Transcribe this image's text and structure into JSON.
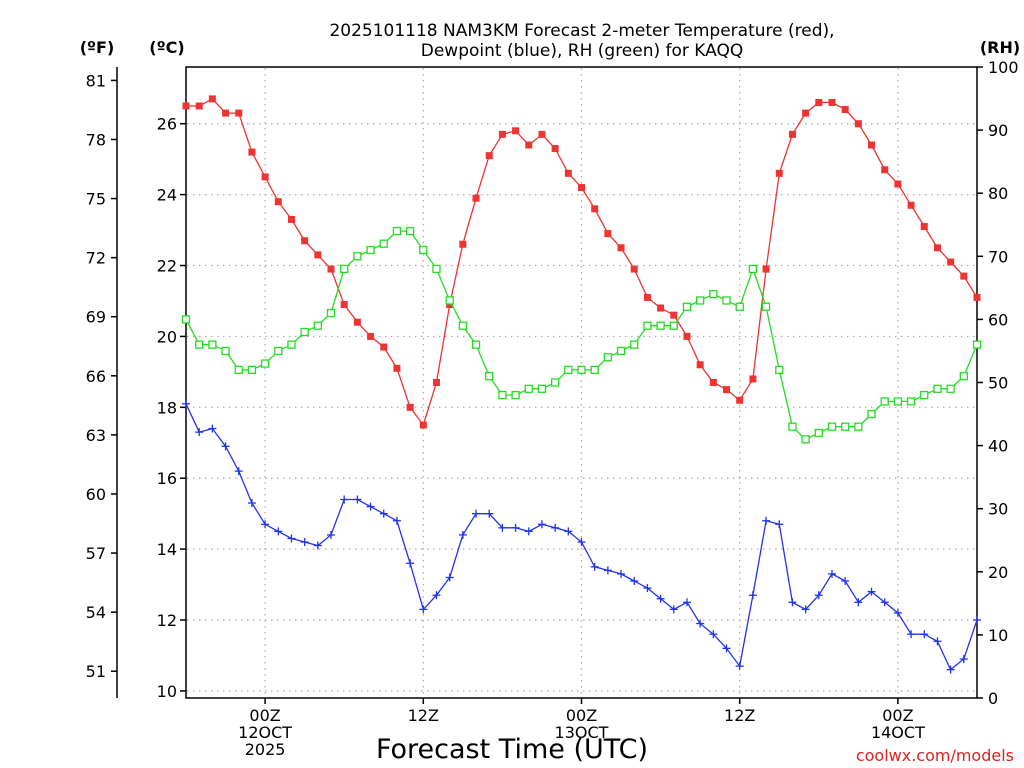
{
  "chart_data": {
    "type": "line",
    "title_line1": "2025101118 NAM3KM Forecast 2-meter Temperature (red),",
    "title_line2": "Dewpoint (blue), RH (green) for KAQQ",
    "xlabel": "Forecast Time (UTC)",
    "watermark": "coolwx.com/models",
    "units": {
      "fahrenheit": "(ºF)",
      "celsius": "(ºC)",
      "rh": "(RH)"
    },
    "x_hours": [
      0,
      1,
      2,
      3,
      4,
      5,
      6,
      7,
      8,
      9,
      10,
      11,
      12,
      13,
      14,
      15,
      16,
      17,
      18,
      19,
      20,
      21,
      22,
      23,
      24,
      25,
      26,
      27,
      28,
      29,
      30,
      31,
      32,
      33,
      34,
      35,
      36,
      37,
      38,
      39,
      40,
      41,
      42,
      43,
      44,
      45,
      46,
      47,
      48,
      49,
      50,
      51,
      52,
      53,
      54,
      55,
      56,
      57,
      58,
      59,
      60
    ],
    "xlim": [
      0,
      60
    ],
    "x_ticks": [
      {
        "hour": 6,
        "lines": [
          "00Z",
          "12OCT",
          "2025"
        ]
      },
      {
        "hour": 18,
        "lines": [
          "12Z"
        ]
      },
      {
        "hour": 30,
        "lines": [
          "00Z",
          "13OCT"
        ]
      },
      {
        "hour": 42,
        "lines": [
          "12Z"
        ]
      },
      {
        "hour": 54,
        "lines": [
          "00Z",
          "14OCT"
        ]
      }
    ],
    "celsius_axis": {
      "range": [
        9.8,
        27.6
      ],
      "ticks": [
        "10",
        "12",
        "14",
        "16",
        "18",
        "20",
        "22",
        "24",
        "26"
      ]
    },
    "fahrenheit_axis": {
      "ticks": [
        "51",
        "54",
        "57",
        "60",
        "63",
        "66",
        "69",
        "72",
        "75",
        "78",
        "81"
      ]
    },
    "rh_axis": {
      "range": [
        0,
        100
      ],
      "ticks": [
        "0",
        "10",
        "20",
        "30",
        "40",
        "50",
        "60",
        "70",
        "80",
        "90",
        "100"
      ]
    },
    "series": [
      {
        "name": "Temperature",
        "color": "#ee3333",
        "axis": "celsius",
        "marker": "filled-square",
        "values": [
          26.5,
          26.5,
          26.7,
          26.3,
          26.3,
          25.2,
          24.5,
          23.8,
          23.3,
          22.7,
          22.3,
          21.9,
          20.9,
          20.4,
          20.0,
          19.7,
          19.1,
          18.0,
          17.5,
          18.7,
          20.9,
          22.6,
          23.9,
          25.1,
          25.7,
          25.8,
          25.4,
          25.7,
          25.3,
          24.6,
          24.2,
          23.6,
          22.9,
          22.5,
          21.9,
          21.1,
          20.8,
          20.6,
          20.0,
          19.2,
          18.7,
          18.5,
          18.2,
          18.8,
          21.9,
          24.6,
          25.7,
          26.3,
          26.6,
          26.6,
          26.4,
          26.0,
          25.4,
          24.7,
          24.3,
          23.7,
          23.1,
          22.5,
          22.1,
          21.7,
          21.1
        ]
      },
      {
        "name": "Dewpoint",
        "color": "#2233ee",
        "axis": "celsius",
        "marker": "plus",
        "values": [
          18.1,
          17.3,
          17.4,
          16.9,
          16.2,
          15.3,
          14.7,
          14.5,
          14.3,
          14.2,
          14.1,
          14.4,
          15.4,
          15.4,
          15.2,
          15.0,
          14.8,
          13.6,
          12.3,
          12.7,
          13.2,
          14.4,
          15.0,
          15.0,
          14.6,
          14.6,
          14.5,
          14.7,
          14.6,
          14.5,
          14.2,
          13.5,
          13.4,
          13.3,
          13.1,
          12.9,
          12.6,
          12.3,
          12.5,
          11.9,
          11.6,
          11.2,
          10.7,
          12.7,
          14.8,
          14.7,
          12.5,
          12.3,
          12.7,
          13.3,
          13.1,
          12.5,
          12.8,
          12.5,
          12.2,
          11.6,
          11.6,
          11.4,
          10.6,
          10.9,
          12.0
        ]
      },
      {
        "name": "RH",
        "color": "#22dd22",
        "axis": "rh",
        "marker": "open-square",
        "values": [
          60,
          56,
          56,
          55,
          52,
          52,
          53,
          55,
          56,
          58,
          59,
          61,
          68,
          70,
          71,
          72,
          74,
          74,
          71,
          68,
          63,
          59,
          56,
          51,
          48,
          48,
          49,
          49,
          50,
          52,
          52,
          52,
          54,
          55,
          56,
          59,
          59,
          59,
          62,
          63,
          64,
          63,
          62,
          68,
          62,
          52,
          43,
          41,
          42,
          43,
          43,
          43,
          45,
          47,
          47,
          47,
          48,
          49,
          49,
          51,
          56
        ]
      }
    ]
  }
}
